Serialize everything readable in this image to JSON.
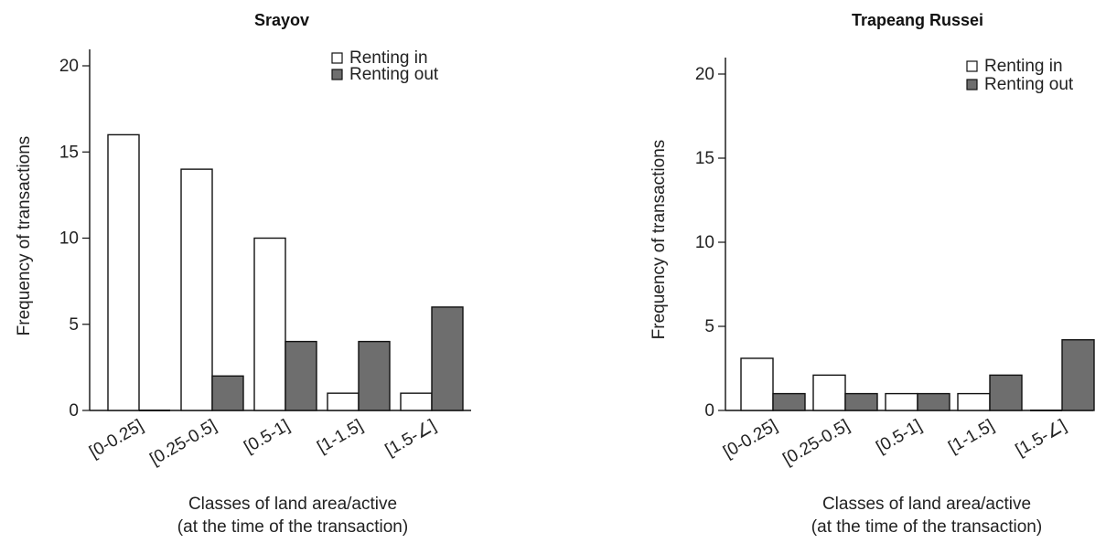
{
  "chart_data": [
    {
      "type": "bar",
      "title": "Srayov",
      "categories": [
        "[0-0.25]",
        "[0.25-0.5]",
        "[0.5-1]",
        "[1-1.5]",
        "[1.5-∠]"
      ],
      "series": [
        {
          "name": "Renting in",
          "values": [
            16,
            14,
            10,
            1,
            1
          ],
          "color": "#ffffff"
        },
        {
          "name": "Renting out",
          "values": [
            0,
            2,
            4,
            4,
            6
          ],
          "color": "#6e6e6e"
        }
      ],
      "ylabel": "Frequency of transactions",
      "xlabel_line1": "Classes of land area/active",
      "xlabel_line2": "(at the time of the transaction)",
      "ylim": [
        0,
        20
      ],
      "yticks": [
        "0",
        "5",
        "10",
        "15",
        "20"
      ],
      "grid": false,
      "legend": "top-right"
    },
    {
      "type": "bar",
      "title": "Trapeang Russei",
      "categories": [
        "[0-0.25]",
        "[0.25-0.5]",
        "[0.5-1]",
        "[1-1.5]",
        "[1.5-∠]"
      ],
      "series": [
        {
          "name": "Renting in",
          "values": [
            3.1,
            2.1,
            1,
            1,
            0
          ],
          "color": "#ffffff"
        },
        {
          "name": "Renting out",
          "values": [
            1,
            1,
            1,
            2.1,
            4.2
          ],
          "color": "#6e6e6e"
        }
      ],
      "ylabel": "Frequency of transactions",
      "xlabel_line1": "Classes of land area/active",
      "xlabel_line2": "(at the time of the transaction)",
      "ylim": [
        0,
        20
      ],
      "yticks": [
        "0",
        "5",
        "10",
        "15",
        "20"
      ],
      "grid": false,
      "legend": "top-right"
    }
  ]
}
